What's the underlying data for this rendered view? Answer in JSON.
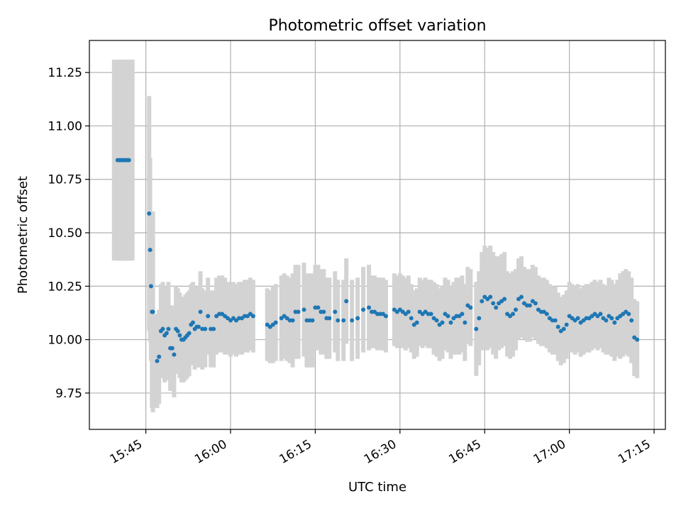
{
  "chart_data": {
    "type": "scatter",
    "title": "Photometric offset variation",
    "xlabel": "UTC time",
    "ylabel": "Photometric offset",
    "grid": true,
    "x_ticks": [
      "15:45",
      "16:00",
      "16:15",
      "16:30",
      "16:45",
      "17:00",
      "17:15"
    ],
    "y_ticks": [
      "9.75",
      "10.00",
      "10.25",
      "10.50",
      "10.75",
      "11.00",
      "11.25"
    ],
    "xlim": [
      "15:35",
      "17:17"
    ],
    "ylim": [
      9.58,
      11.4
    ],
    "colors": {
      "points": "#1f77b4",
      "errorbars": "#d3d3d3"
    },
    "series": [
      {
        "x": [
          "15:40:00",
          "15:40:20",
          "15:40:40",
          "15:41:00",
          "15:41:20",
          "15:41:40",
          "15:42:00",
          "15:45:35",
          "15:45:45",
          "15:45:55",
          "15:46:05",
          "15:46:15",
          "15:47:00",
          "15:47:20",
          "15:47:40",
          "15:48:00",
          "15:48:20",
          "15:48:40",
          "15:49:00",
          "15:49:20",
          "15:49:40",
          "15:50:00",
          "15:50:20",
          "15:50:40",
          "15:51:00",
          "15:51:20",
          "15:51:40",
          "15:52:00",
          "15:52:20",
          "15:52:40",
          "15:53:00",
          "15:53:20",
          "15:53:40",
          "15:54:00",
          "15:54:20",
          "15:54:40",
          "15:55:00",
          "15:55:30",
          "15:56:00",
          "15:56:30",
          "15:57:00",
          "15:57:30",
          "15:58:00",
          "15:58:30",
          "15:59:00",
          "15:59:30",
          "16:00:00",
          "16:00:30",
          "16:01:00",
          "16:01:30",
          "16:02:00",
          "16:02:30",
          "16:03:00",
          "16:03:30",
          "16:04:00",
          "16:06:30",
          "16:07:00",
          "16:07:30",
          "16:08:00",
          "16:09:00",
          "16:09:30",
          "16:10:00",
          "16:10:30",
          "16:11:00",
          "16:11:30",
          "16:12:00",
          "16:13:00",
          "16:13:30",
          "16:14:00",
          "16:14:30",
          "16:15:00",
          "16:15:30",
          "16:16:00",
          "16:16:30",
          "16:17:00",
          "16:17:30",
          "16:18:30",
          "16:19:00",
          "16:20:00",
          "16:20:30",
          "16:21:30",
          "16:22:30",
          "16:23:30",
          "16:24:30",
          "16:25:00",
          "16:25:30",
          "16:26:00",
          "16:26:30",
          "16:27:00",
          "16:27:30",
          "16:29:00",
          "16:29:30",
          "16:30:00",
          "16:30:30",
          "16:31:00",
          "16:31:30",
          "16:32:00",
          "16:32:30",
          "16:33:00",
          "16:33:30",
          "16:34:00",
          "16:34:30",
          "16:35:00",
          "16:35:30",
          "16:36:00",
          "16:36:30",
          "16:37:00",
          "16:37:30",
          "16:38:00",
          "16:38:30",
          "16:39:00",
          "16:39:30",
          "16:40:00",
          "16:40:30",
          "16:41:00",
          "16:41:30",
          "16:42:00",
          "16:42:30",
          "16:43:30",
          "16:44:00",
          "16:44:30",
          "16:45:00",
          "16:45:30",
          "16:46:00",
          "16:46:30",
          "16:47:00",
          "16:47:30",
          "16:48:00",
          "16:48:30",
          "16:49:00",
          "16:49:30",
          "16:50:00",
          "16:50:30",
          "16:51:00",
          "16:51:30",
          "16:52:00",
          "16:52:30",
          "16:53:00",
          "16:53:30",
          "16:54:00",
          "16:54:30",
          "16:55:00",
          "16:55:30",
          "16:56:00",
          "16:56:30",
          "16:57:00",
          "16:57:30",
          "16:58:00",
          "16:58:30",
          "16:59:00",
          "16:59:30",
          "17:00:00",
          "17:00:30",
          "17:01:00",
          "17:01:30",
          "17:02:00",
          "17:02:30",
          "17:03:00",
          "17:03:30",
          "17:04:00",
          "17:04:30",
          "17:05:00",
          "17:05:30",
          "17:06:00",
          "17:06:30",
          "17:07:00",
          "17:07:30",
          "17:08:00",
          "17:08:30",
          "17:09:00",
          "17:09:30",
          "17:10:00",
          "17:10:30",
          "17:11:00",
          "17:11:30",
          "17:12:00"
        ],
        "y": [
          10.84,
          10.84,
          10.84,
          10.84,
          10.84,
          10.84,
          10.84,
          10.59,
          10.42,
          10.25,
          10.13,
          10.13,
          9.9,
          9.92,
          10.04,
          10.05,
          10.02,
          10.03,
          10.05,
          9.96,
          9.96,
          9.93,
          10.05,
          10.04,
          10.02,
          10.0,
          10.0,
          10.01,
          10.02,
          10.03,
          10.07,
          10.08,
          10.05,
          10.06,
          10.06,
          10.13,
          10.05,
          10.05,
          10.11,
          10.05,
          10.05,
          10.11,
          10.12,
          10.12,
          10.11,
          10.1,
          10.09,
          10.1,
          10.09,
          10.1,
          10.1,
          10.11,
          10.11,
          10.12,
          10.11,
          10.07,
          10.06,
          10.07,
          10.08,
          10.1,
          10.11,
          10.1,
          10.09,
          10.09,
          10.13,
          10.13,
          10.14,
          10.09,
          10.09,
          10.09,
          10.15,
          10.15,
          10.13,
          10.13,
          10.1,
          10.1,
          10.13,
          10.09,
          10.09,
          10.18,
          10.09,
          10.1,
          10.14,
          10.15,
          10.13,
          10.13,
          10.12,
          10.12,
          10.12,
          10.11,
          10.14,
          10.13,
          10.14,
          10.13,
          10.12,
          10.13,
          10.1,
          10.07,
          10.08,
          10.13,
          10.12,
          10.13,
          10.12,
          10.12,
          10.1,
          10.09,
          10.07,
          10.08,
          10.12,
          10.11,
          10.08,
          10.1,
          10.11,
          10.11,
          10.12,
          10.08,
          10.16,
          10.15,
          10.05,
          10.1,
          10.18,
          10.2,
          10.19,
          10.2,
          10.17,
          10.15,
          10.17,
          10.18,
          10.19,
          10.12,
          10.11,
          10.12,
          10.14,
          10.19,
          10.2,
          10.17,
          10.16,
          10.16,
          10.18,
          10.17,
          10.14,
          10.13,
          10.13,
          10.12,
          10.1,
          10.09,
          10.09,
          10.06,
          10.04,
          10.05,
          10.07,
          10.11,
          10.1,
          10.09,
          10.1,
          10.08,
          10.09,
          10.1,
          10.1,
          10.11,
          10.12,
          10.11,
          10.12,
          10.1,
          10.09,
          10.11,
          10.1,
          10.08,
          10.1,
          10.11,
          10.12,
          10.13,
          10.12,
          10.09,
          10.01,
          10.0
        ],
        "err": [
          0.47,
          0.47,
          0.47,
          0.47,
          0.47,
          0.47,
          0.47,
          0.55,
          0.43,
          0.35,
          0.45,
          0.47,
          0.22,
          0.22,
          0.22,
          0.22,
          0.22,
          0.22,
          0.22,
          0.2,
          0.2,
          0.2,
          0.2,
          0.2,
          0.2,
          0.2,
          0.2,
          0.2,
          0.2,
          0.2,
          0.19,
          0.19,
          0.19,
          0.19,
          0.19,
          0.19,
          0.19,
          0.18,
          0.18,
          0.18,
          0.18,
          0.18,
          0.18,
          0.18,
          0.18,
          0.17,
          0.17,
          0.17,
          0.17,
          0.17,
          0.17,
          0.17,
          0.17,
          0.17,
          0.17,
          0.17,
          0.17,
          0.18,
          0.18,
          0.2,
          0.2,
          0.2,
          0.2,
          0.22,
          0.22,
          0.22,
          0.22,
          0.22,
          0.22,
          0.22,
          0.2,
          0.2,
          0.2,
          0.2,
          0.19,
          0.19,
          0.19,
          0.19,
          0.19,
          0.2,
          0.19,
          0.19,
          0.2,
          0.2,
          0.17,
          0.17,
          0.17,
          0.17,
          0.17,
          0.17,
          0.17,
          0.17,
          0.17,
          0.17,
          0.17,
          0.17,
          0.16,
          0.16,
          0.16,
          0.16,
          0.16,
          0.16,
          0.16,
          0.16,
          0.17,
          0.17,
          0.17,
          0.17,
          0.17,
          0.17,
          0.17,
          0.17,
          0.18,
          0.18,
          0.18,
          0.18,
          0.18,
          0.18,
          0.22,
          0.22,
          0.23,
          0.24,
          0.24,
          0.24,
          0.24,
          0.24,
          0.22,
          0.22,
          0.22,
          0.2,
          0.2,
          0.2,
          0.19,
          0.19,
          0.19,
          0.17,
          0.17,
          0.17,
          0.17,
          0.17,
          0.16,
          0.16,
          0.16,
          0.16,
          0.16,
          0.16,
          0.16,
          0.16,
          0.16,
          0.16,
          0.16,
          0.16,
          0.16,
          0.16,
          0.16,
          0.16,
          0.16,
          0.16,
          0.16,
          0.16,
          0.16,
          0.16,
          0.16,
          0.16,
          0.16,
          0.18,
          0.18,
          0.18,
          0.18,
          0.2,
          0.2,
          0.2,
          0.2,
          0.2,
          0.18,
          0.18
        ]
      }
    ]
  }
}
